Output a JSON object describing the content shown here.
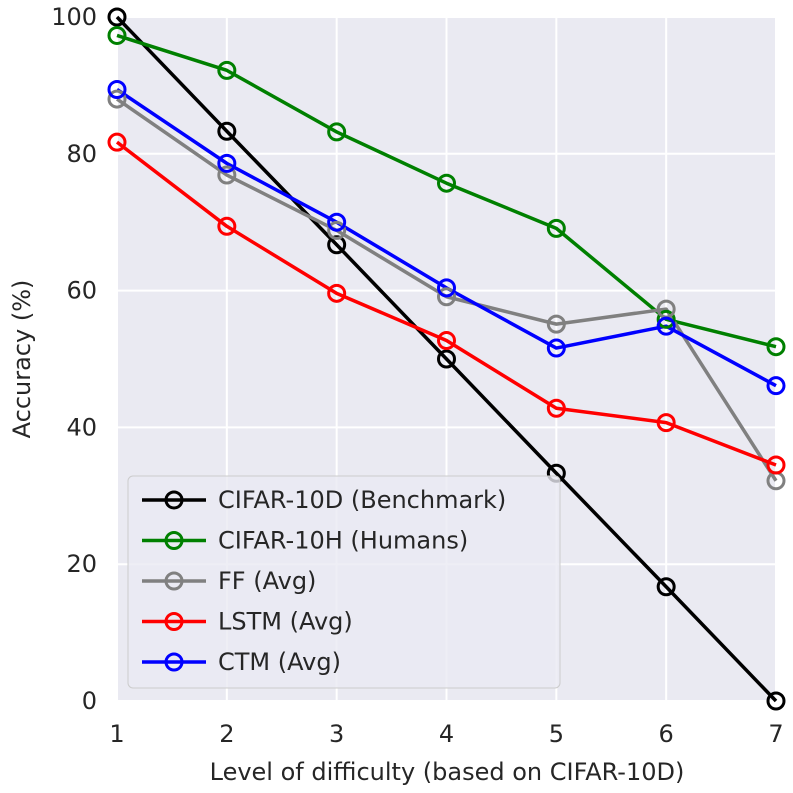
{
  "chart_data": {
    "type": "line",
    "title": "",
    "xlabel": "Level of difficulty (based on CIFAR-10D)",
    "ylabel": "Accuracy (%)",
    "xlim": [
      1,
      7
    ],
    "ylim": [
      0,
      100
    ],
    "x": [
      1,
      2,
      3,
      4,
      5,
      6,
      7
    ],
    "xticks": [
      "1",
      "2",
      "3",
      "4",
      "5",
      "6",
      "7"
    ],
    "yticks": [
      "0",
      "20",
      "40",
      "60",
      "80",
      "100"
    ],
    "grid": true,
    "legend_position": "lower-left",
    "series": [
      {
        "name": "CIFAR-10D (Benchmark)",
        "color": "#000000",
        "values": [
          100,
          83.3,
          66.7,
          50,
          33.3,
          16.7,
          0
        ]
      },
      {
        "name": "CIFAR-10H (Humans)",
        "color": "#008000",
        "values": [
          97.3,
          92.2,
          83.2,
          75.7,
          69.1,
          55.8,
          51.8
        ]
      },
      {
        "name": "FF (Avg)",
        "color": "#808080",
        "values": [
          88.0,
          76.9,
          68.8,
          59.1,
          55.1,
          57.3,
          32.2
        ]
      },
      {
        "name": "LSTM (Avg)",
        "color": "#ff0000",
        "values": [
          81.7,
          69.4,
          59.6,
          52.7,
          42.8,
          40.7,
          34.5
        ]
      },
      {
        "name": "CTM (Avg)",
        "color": "#0000ff",
        "values": [
          89.4,
          78.6,
          70.0,
          60.4,
          51.6,
          54.8,
          46.1
        ]
      }
    ]
  }
}
